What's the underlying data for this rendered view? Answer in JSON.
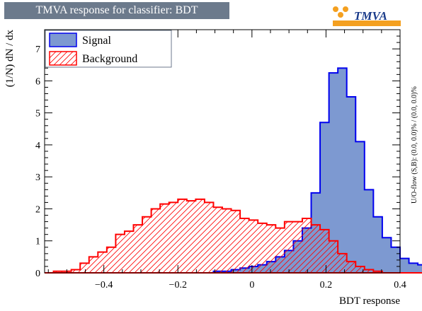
{
  "window": {
    "title": "TMVA response for classifier: BDT"
  },
  "logo": {
    "text": "TMVA"
  },
  "side_note": "U/O-flow (S,B): (0.0, 0.0)% / (0.0, 0.0)%",
  "colors": {
    "signal_fill": "#7d99d1",
    "signal_line": "#0000ee",
    "background_line": "#ff0000",
    "title_bg": "#6c7a8c"
  },
  "chart_data": {
    "type": "histogram",
    "xlabel": "BDT response",
    "ylabel": "(1/N) dN / dx",
    "xlim": [
      -0.56,
      0.4
    ],
    "ylim": [
      0,
      7.6
    ],
    "xticks": [
      "−0.4",
      "−0.2",
      "0",
      "0.2",
      "0.4"
    ],
    "xtick_values": [
      -0.4,
      -0.2,
      0,
      0.2,
      0.4
    ],
    "yticks": [
      "0",
      "1",
      "2",
      "3",
      "4",
      "5",
      "6",
      "7"
    ],
    "ytick_values": [
      0,
      1,
      2,
      3,
      4,
      5,
      6,
      7
    ],
    "bin_start": -0.56,
    "bin_width": 0.024,
    "legend_position": "top-left",
    "series": [
      {
        "name": "Signal",
        "style": "filled",
        "values": [
          0.0,
          0.0,
          0.0,
          0.0,
          0.0,
          0.0,
          0.0,
          0.0,
          0.0,
          0.0,
          0.0,
          0.0,
          0.0,
          0.0,
          0.0,
          0.0,
          0.0,
          0.0,
          0.0,
          0.05,
          0.05,
          0.1,
          0.15,
          0.2,
          0.25,
          0.35,
          0.5,
          0.7,
          1.0,
          1.4,
          2.5,
          4.7,
          6.25,
          6.4,
          5.5,
          4.1,
          2.6,
          1.75,
          1.1,
          0.8,
          0.45,
          0.3,
          0.25,
          0.15,
          0.05,
          0.0
        ]
      },
      {
        "name": "Background",
        "style": "hatched",
        "values": [
          0.0,
          0.05,
          0.05,
          0.1,
          0.3,
          0.5,
          0.65,
          0.8,
          1.2,
          1.3,
          1.5,
          1.75,
          2.0,
          2.15,
          2.2,
          2.3,
          2.25,
          2.3,
          2.2,
          2.05,
          2.0,
          1.95,
          1.7,
          1.65,
          1.55,
          1.5,
          1.4,
          1.6,
          1.6,
          1.7,
          1.5,
          1.35,
          1.0,
          0.6,
          0.35,
          0.2,
          0.1,
          0.05,
          0.0,
          0.0,
          0.0,
          0.0,
          0.0,
          0.0,
          0.0,
          0.0
        ]
      }
    ]
  }
}
